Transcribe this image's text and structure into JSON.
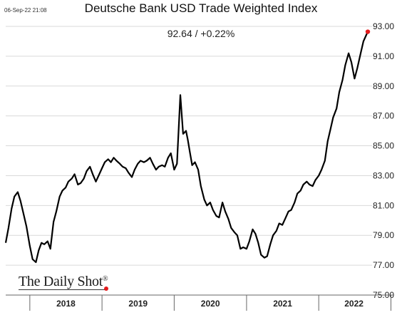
{
  "timestamp": "06-Sep-22 21:08",
  "logo_text": "The Daily Shot",
  "logo_mark": "®",
  "chart_data": {
    "type": "line",
    "title": "Deutsche Bank USD Trade Weighted Index",
    "annotation": "92.64  /  +0.22%",
    "xlabel": "",
    "ylabel": "",
    "yticks": [
      "93.00",
      "91.00",
      "89.00",
      "87.00",
      "85.00",
      "83.00",
      "81.00",
      "79.00",
      "77.00",
      "75.00"
    ],
    "ylim": [
      75,
      93
    ],
    "xticks": [
      "2018",
      "2019",
      "2020",
      "2021",
      "2022"
    ],
    "x_range": [
      "2017-09-01",
      "2022-09-06"
    ],
    "y_axis_side": "right",
    "grid": "horizontal",
    "line_color": "#000000",
    "last_point_color": "#e41a1c",
    "series": [
      {
        "x": [
          "2017-09-01",
          "2017-09-15",
          "2017-10-01",
          "2017-10-15",
          "2017-11-01",
          "2017-11-15",
          "2017-12-01",
          "2017-12-15",
          "2018-01-01",
          "2018-01-15",
          "2018-02-01",
          "2018-02-15",
          "2018-03-01",
          "2018-03-15",
          "2018-04-01",
          "2018-04-15",
          "2018-05-01",
          "2018-05-15",
          "2018-06-01",
          "2018-06-15",
          "2018-07-01",
          "2018-07-15",
          "2018-08-01",
          "2018-08-15",
          "2018-09-01",
          "2018-09-15",
          "2018-10-01",
          "2018-10-15",
          "2018-11-01",
          "2018-11-15",
          "2018-12-01",
          "2018-12-15",
          "2019-01-01",
          "2019-01-15",
          "2019-02-01",
          "2019-02-15",
          "2019-03-01",
          "2019-03-15",
          "2019-04-01",
          "2019-04-15",
          "2019-05-01",
          "2019-05-15",
          "2019-06-01",
          "2019-06-15",
          "2019-07-01",
          "2019-07-15",
          "2019-08-01",
          "2019-08-15",
          "2019-09-01",
          "2019-09-15",
          "2019-10-01",
          "2019-10-15",
          "2019-11-01",
          "2019-11-15",
          "2019-12-01",
          "2019-12-15",
          "2020-01-01",
          "2020-01-15",
          "2020-02-01",
          "2020-02-15",
          "2020-03-01",
          "2020-03-10",
          "2020-03-20",
          "2020-04-01",
          "2020-04-15",
          "2020-05-01",
          "2020-05-15",
          "2020-06-01",
          "2020-06-15",
          "2020-07-01",
          "2020-07-15",
          "2020-08-01",
          "2020-08-15",
          "2020-09-01",
          "2020-09-15",
          "2020-10-01",
          "2020-10-15",
          "2020-11-01",
          "2020-11-15",
          "2020-12-01",
          "2020-12-15",
          "2021-01-01",
          "2021-01-15",
          "2021-02-01",
          "2021-02-15",
          "2021-03-01",
          "2021-03-15",
          "2021-04-01",
          "2021-04-15",
          "2021-05-01",
          "2021-05-15",
          "2021-06-01",
          "2021-06-15",
          "2021-07-01",
          "2021-07-15",
          "2021-08-01",
          "2021-08-15",
          "2021-09-01",
          "2021-09-15",
          "2021-10-01",
          "2021-10-15",
          "2021-11-01",
          "2021-11-15",
          "2021-12-01",
          "2021-12-15",
          "2022-01-01",
          "2022-01-15",
          "2022-02-01",
          "2022-02-15",
          "2022-03-01",
          "2022-03-15",
          "2022-04-01",
          "2022-04-15",
          "2022-05-01",
          "2022-05-15",
          "2022-06-01",
          "2022-06-15",
          "2022-07-01",
          "2022-07-15",
          "2022-08-01",
          "2022-08-15",
          "2022-09-01",
          "2022-09-06"
        ],
        "y": [
          78.5,
          79.5,
          80.8,
          81.6,
          81.9,
          81.3,
          80.4,
          79.6,
          78.3,
          77.4,
          77.2,
          78.0,
          78.5,
          78.4,
          78.6,
          78.1,
          79.9,
          80.6,
          81.6,
          82.0,
          82.2,
          82.6,
          82.8,
          83.1,
          82.4,
          82.5,
          82.8,
          83.3,
          83.6,
          83.1,
          82.6,
          83.0,
          83.5,
          83.9,
          84.1,
          83.9,
          84.2,
          84.0,
          83.8,
          83.6,
          83.5,
          83.2,
          82.9,
          83.4,
          83.8,
          84.0,
          83.9,
          84.0,
          84.2,
          83.8,
          83.4,
          83.6,
          83.7,
          83.6,
          84.2,
          84.5,
          83.4,
          83.8,
          88.4,
          85.8,
          86.0,
          85.4,
          84.6,
          83.7,
          83.9,
          83.4,
          82.3,
          81.4,
          81.0,
          81.2,
          80.7,
          80.3,
          80.2,
          81.2,
          80.6,
          80.1,
          79.5,
          79.2,
          79.0,
          78.1,
          78.2,
          78.1,
          78.6,
          79.4,
          79.1,
          78.5,
          77.7,
          77.5,
          77.6,
          78.4,
          79.0,
          79.3,
          79.8,
          79.7,
          80.1,
          80.6,
          80.7,
          81.2,
          81.8,
          82.0,
          82.4,
          82.6,
          82.4,
          82.3,
          82.7,
          83.0,
          83.4,
          84.0,
          85.3,
          86.1,
          86.9,
          87.5,
          88.6,
          89.4,
          90.4,
          91.2,
          90.6,
          89.5,
          90.2,
          91.2,
          92.0,
          92.5,
          92.64
        ]
      }
    ]
  }
}
